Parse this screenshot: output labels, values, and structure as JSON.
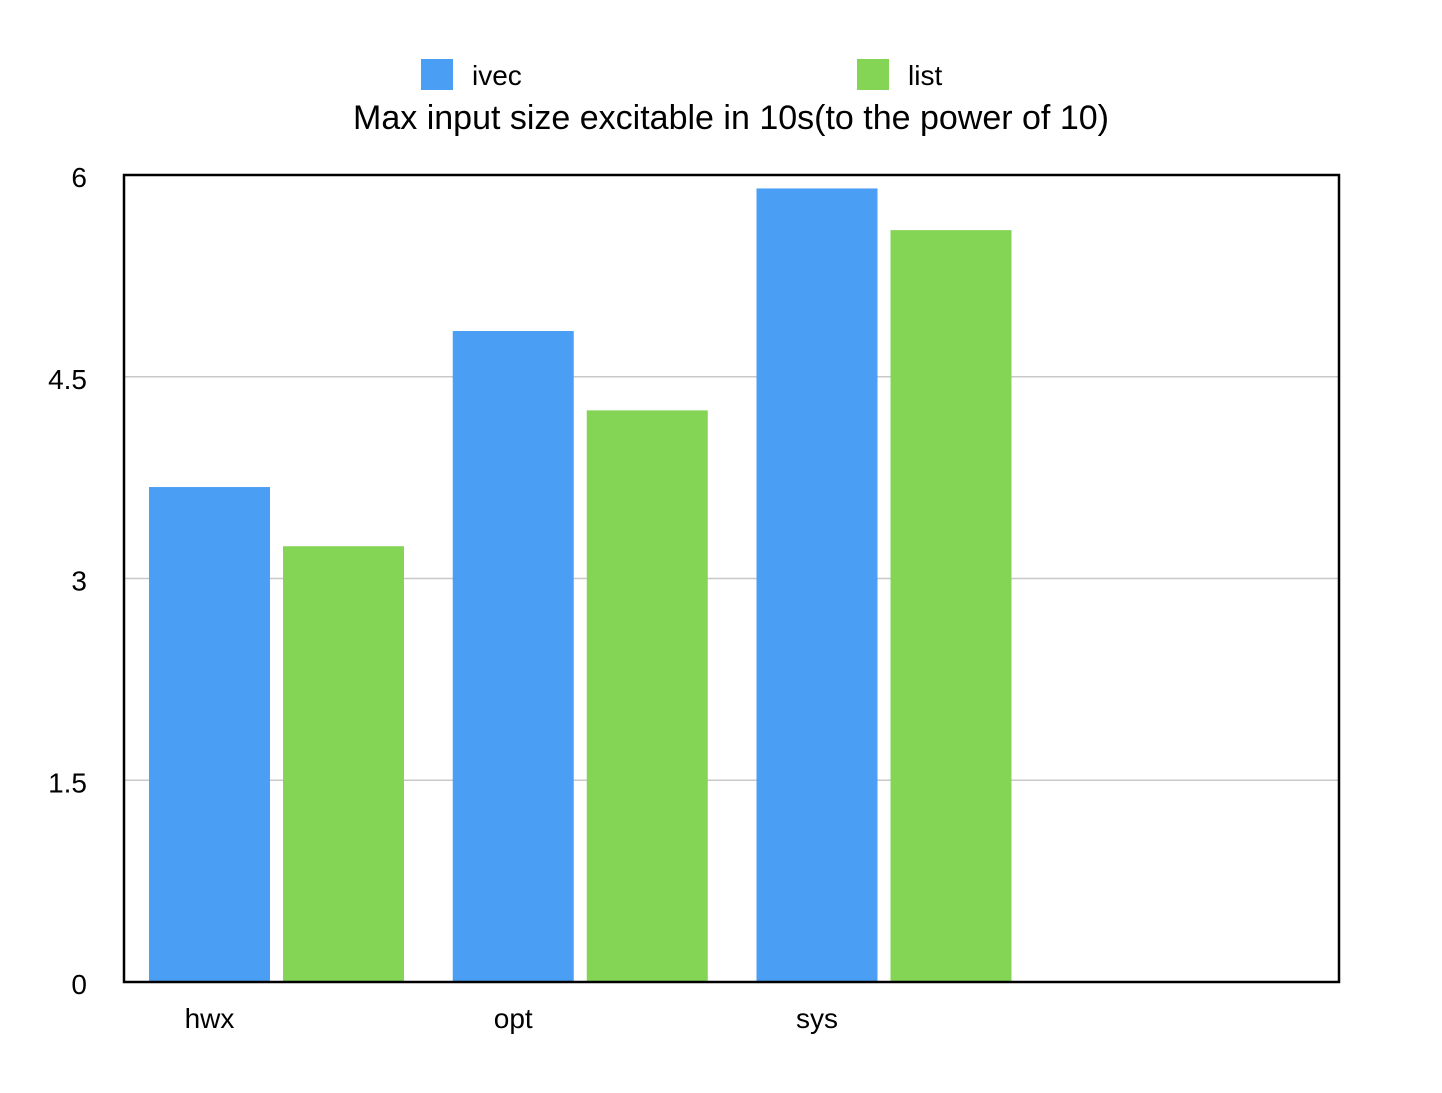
{
  "chart_data": {
    "type": "bar",
    "title": "Max input size excitable in 10s(to the power of 10)",
    "xlabel": "",
    "ylabel": "",
    "categories": [
      "hwx",
      "opt",
      "sys",
      ""
    ],
    "series": [
      {
        "name": "ivec",
        "color": "#4a9ff5",
        "values": [
          3.68,
          4.84,
          5.9,
          null
        ]
      },
      {
        "name": "list",
        "color": "#84d455",
        "values": [
          3.24,
          4.25,
          5.59,
          null
        ]
      }
    ],
    "ylim": [
      0,
      6
    ],
    "yticks": [
      "0",
      "1.5",
      "3",
      "4.5",
      "6"
    ],
    "ytick_values": [
      0,
      1.5,
      3,
      4.5,
      6
    ],
    "grid": true,
    "grid_color": "#c8c8c8",
    "legend": "top"
  }
}
